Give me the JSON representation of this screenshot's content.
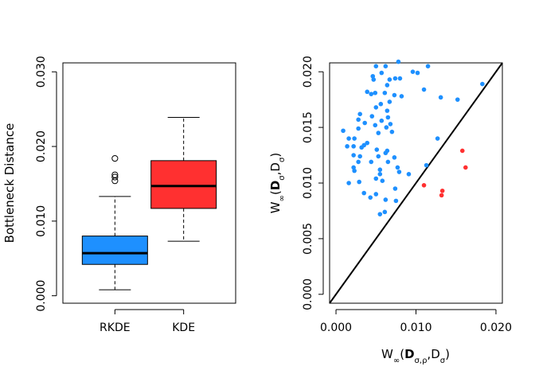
{
  "chart_data": [
    {
      "type": "box",
      "ylabel": "Bottleneck Distance",
      "ylim": [
        -0.001,
        0.0312
      ],
      "yticks": [
        "0.000",
        "0.010",
        "0.020",
        "0.030"
      ],
      "ytick_values": [
        0.0,
        0.01,
        0.02,
        0.03
      ],
      "categories": [
        "RKDE",
        "KDE"
      ],
      "boxes": [
        {
          "name": "RKDE",
          "color": "#1e90ff",
          "whisker_low": 0.0008,
          "q1": 0.0042,
          "median": 0.0057,
          "q3": 0.008,
          "whisker_high": 0.0133,
          "outliers": [
            0.0184,
            0.0162,
            0.0159,
            0.0154
          ]
        },
        {
          "name": "KDE",
          "color": "#ff3030",
          "whisker_low": 0.0073,
          "q1": 0.0117,
          "median": 0.0147,
          "q3": 0.0181,
          "whisker_high": 0.0239,
          "outliers": []
        }
      ]
    },
    {
      "type": "scatter",
      "xlabel_parts": [
        "W",
        "∞",
        "(",
        "D",
        "σ,ρ",
        ",D",
        "σ",
        ")"
      ],
      "ylabel_parts": [
        "W",
        "∞",
        "(",
        "D",
        "σ",
        ",D",
        "σ",
        ")"
      ],
      "xlim": [
        -0.0008,
        0.0208
      ],
      "ylim": [
        -0.0008,
        0.0208
      ],
      "xticks": [
        "0.000",
        "0.010",
        "0.020"
      ],
      "xtick_values": [
        0.0,
        0.01,
        0.02
      ],
      "yticks": [
        "0.000",
        "0.005",
        "0.010",
        "0.015",
        "0.020"
      ],
      "ytick_values": [
        0.0,
        0.005,
        0.01,
        0.015,
        0.02
      ],
      "reference_line": "y = x",
      "series": [
        {
          "color": "#1e90ff",
          "points": [
            [
              0.005,
              0.0205
            ],
            [
              0.0062,
              0.0205
            ],
            [
              0.0078,
              0.0209
            ],
            [
              0.0115,
              0.0205
            ],
            [
              0.0096,
              0.02
            ],
            [
              0.0102,
              0.0199
            ],
            [
              0.0046,
              0.0196
            ],
            [
              0.0047,
              0.0193
            ],
            [
              0.0057,
              0.0199
            ],
            [
              0.0067,
              0.0193
            ],
            [
              0.0074,
              0.0194
            ],
            [
              0.008,
              0.0194
            ],
            [
              0.0064,
              0.0188
            ],
            [
              0.011,
              0.0184
            ],
            [
              0.0183,
              0.0189
            ],
            [
              0.0039,
              0.0182
            ],
            [
              0.0044,
              0.018
            ],
            [
              0.0049,
              0.0181
            ],
            [
              0.0061,
              0.0181
            ],
            [
              0.0073,
              0.0179
            ],
            [
              0.0082,
              0.0178
            ],
            [
              0.0131,
              0.0177
            ],
            [
              0.0152,
              0.0175
            ],
            [
              0.0067,
              0.0173
            ],
            [
              0.0056,
              0.0171
            ],
            [
              0.005,
              0.0168
            ],
            [
              0.0064,
              0.0165
            ],
            [
              0.003,
              0.0162
            ],
            [
              0.0045,
              0.016
            ],
            [
              0.0065,
              0.0159
            ],
            [
              0.0028,
              0.0157
            ],
            [
              0.0057,
              0.0156
            ],
            [
              0.0036,
              0.0154
            ],
            [
              0.0068,
              0.0153
            ],
            [
              0.0049,
              0.0152
            ],
            [
              0.0063,
              0.015
            ],
            [
              0.0028,
              0.0149
            ],
            [
              0.0009,
              0.0147
            ],
            [
              0.007,
              0.0146
            ],
            [
              0.0053,
              0.0145
            ],
            [
              0.0016,
              0.014
            ],
            [
              0.0023,
              0.014
            ],
            [
              0.0127,
              0.014
            ],
            [
              0.0039,
              0.0136
            ],
            [
              0.0035,
              0.0134
            ],
            [
              0.0014,
              0.0133
            ],
            [
              0.0022,
              0.0133
            ],
            [
              0.0032,
              0.0132
            ],
            [
              0.0051,
              0.013
            ],
            [
              0.0064,
              0.0129
            ],
            [
              0.0062,
              0.0127
            ],
            [
              0.0022,
              0.0125
            ],
            [
              0.003,
              0.0124
            ],
            [
              0.0053,
              0.0124
            ],
            [
              0.0073,
              0.0123
            ],
            [
              0.0028,
              0.0119
            ],
            [
              0.0044,
              0.0119
            ],
            [
              0.0065,
              0.0119
            ],
            [
              0.0113,
              0.0116
            ],
            [
              0.0022,
              0.0114
            ],
            [
              0.0077,
              0.0114
            ],
            [
              0.0055,
              0.0112
            ],
            [
              0.0023,
              0.0111
            ],
            [
              0.0079,
              0.011
            ],
            [
              0.0055,
              0.0108
            ],
            [
              0.0091,
              0.0108
            ],
            [
              0.005,
              0.0104
            ],
            [
              0.0058,
              0.0102
            ],
            [
              0.0029,
              0.0101
            ],
            [
              0.0016,
              0.01
            ],
            [
              0.0074,
              0.0095
            ],
            [
              0.0035,
              0.0091
            ],
            [
              0.005,
              0.009
            ],
            [
              0.0043,
              0.0087
            ],
            [
              0.0062,
              0.0085
            ],
            [
              0.0075,
              0.0084
            ],
            [
              0.0061,
              0.0074
            ],
            [
              0.0055,
              0.0072
            ]
          ]
        },
        {
          "color": "#ff3030",
          "points": [
            [
              0.0158,
              0.0129
            ],
            [
              0.0162,
              0.0114
            ],
            [
              0.011,
              0.0098
            ],
            [
              0.0133,
              0.0093
            ],
            [
              0.0132,
              0.0089
            ]
          ]
        }
      ]
    }
  ]
}
